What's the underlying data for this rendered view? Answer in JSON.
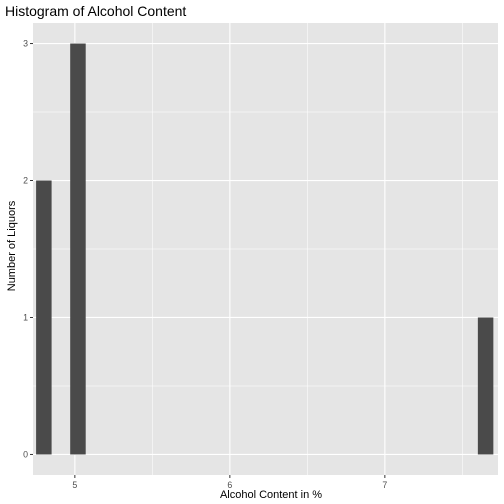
{
  "chart_data": {
    "type": "bar",
    "title": "Histogram of Alcohol Content",
    "xlabel": "Alcohol Content in %",
    "ylabel": "Number of Liquors",
    "xlim": [
      4.73,
      7.73
    ],
    "ylim": [
      -0.15,
      3.15
    ],
    "x_ticks": [
      5,
      6,
      7
    ],
    "y_ticks": [
      0,
      1,
      2,
      3
    ],
    "x_minor_gridlines": [
      5.5,
      6.5,
      7.5
    ],
    "y_minor_gridlines": [
      0.5,
      1.5,
      2.5
    ],
    "bin_width": 0.1,
    "bins": [
      {
        "center": 4.8,
        "count": 2
      },
      {
        "center": 5.02,
        "count": 3
      },
      {
        "center": 7.65,
        "count": 1
      }
    ],
    "grid": true,
    "colors": {
      "panel_background": "#e5e5e5",
      "grid": "#ffffff",
      "bar_fill": "#4a4a4a"
    }
  }
}
